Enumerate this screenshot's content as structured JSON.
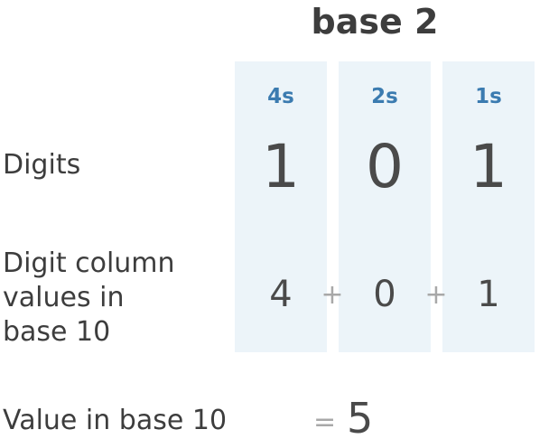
{
  "title": "base 2",
  "columns": [
    {
      "place": "4s",
      "digit": "1",
      "value": "4"
    },
    {
      "place": "2s",
      "digit": "0",
      "value": "0"
    },
    {
      "place": "1s",
      "digit": "1",
      "value": "1"
    }
  ],
  "operators": [
    "+",
    "+"
  ],
  "rows": {
    "digits_label": "Digits",
    "column_values_label": "Digit column\nvalues in\nbase 10",
    "value_label": "Value in base 10"
  },
  "result": {
    "equals": "=",
    "value": "5"
  },
  "colors": {
    "column_background": "#ecf4f9",
    "place_label": "#3b7bb0",
    "operator": "#a8a8a8"
  }
}
